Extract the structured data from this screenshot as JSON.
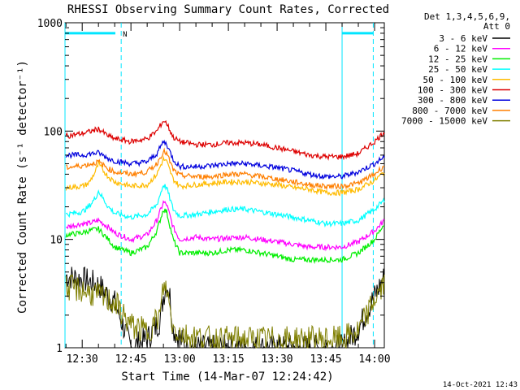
{
  "chart_data": {
    "type": "line",
    "title": "RHESSI Observing Summary Count Rates, Corrected",
    "xlabel": "Start Time (14-Mar-07 12:24:42)",
    "ylabel": "Corrected Count Rate (s⁻¹ detector⁻¹)",
    "yscale": "log",
    "ylim": [
      1,
      1000
    ],
    "xlim_minutes_after_1230": [
      -5.3,
      93
    ],
    "y_ticks": [
      "1",
      "10",
      "100",
      "1000"
    ],
    "x_ticks": [
      "12:30",
      "12:45",
      "13:00",
      "13:15",
      "13:30",
      "13:45",
      "14:00"
    ],
    "x_tick_minutes": [
      0,
      15,
      30,
      45,
      60,
      75,
      90
    ],
    "legend_header": [
      "Det 1,3,4,5,6,9,",
      "Att 0"
    ],
    "legend_placement": "right",
    "grid": false,
    "markers": {
      "boundaries_minutes": [
        -5.3,
        12.0,
        80.0,
        89.6
      ],
      "night_bars": [
        {
          "from": -5.3,
          "to": 10.2,
          "y": 800
        },
        {
          "from": 80.0,
          "to": 89.6,
          "y": 800
        }
      ],
      "night_label": "N",
      "night_label_at": 12.5,
      "colors": {
        "boundary": "#00e5ff",
        "night_bar": "#00e5ff"
      }
    },
    "series": [
      {
        "name": "3 - 6 keV",
        "color": "#000000",
        "points": [
          [
            -5,
            4.6
          ],
          [
            0,
            4.3
          ],
          [
            5,
            3.8
          ],
          [
            10,
            2.6
          ],
          [
            15,
            1
          ],
          [
            20,
            1.2
          ],
          [
            24,
            1.8
          ],
          [
            25,
            3
          ],
          [
            26,
            4
          ],
          [
            27,
            3
          ],
          [
            28,
            1.5
          ],
          [
            32,
            1
          ],
          [
            40,
            1
          ],
          [
            50,
            1
          ],
          [
            60,
            1
          ],
          [
            70,
            1
          ],
          [
            80,
            1
          ],
          [
            85,
            1.5
          ],
          [
            90,
            3
          ],
          [
            93,
            4.5
          ]
        ]
      },
      {
        "name": "6 - 12 keV",
        "color": "#ff00ff",
        "points": [
          [
            -5,
            13
          ],
          [
            0,
            14
          ],
          [
            2,
            14
          ],
          [
            5,
            15
          ],
          [
            8,
            13
          ],
          [
            10,
            11.5
          ],
          [
            15,
            10
          ],
          [
            20,
            11
          ],
          [
            23,
            15
          ],
          [
            25,
            22
          ],
          [
            26,
            21
          ],
          [
            28,
            13
          ],
          [
            30,
            10
          ],
          [
            35,
            10.5
          ],
          [
            40,
            10
          ],
          [
            45,
            10.3
          ],
          [
            50,
            10.5
          ],
          [
            55,
            10
          ],
          [
            60,
            9.5
          ],
          [
            65,
            9
          ],
          [
            70,
            8.5
          ],
          [
            75,
            8.5
          ],
          [
            80,
            8.5
          ],
          [
            85,
            9.5
          ],
          [
            90,
            12
          ],
          [
            93,
            15
          ]
        ]
      },
      {
        "name": "12 - 25 keV",
        "color": "#00ee00",
        "points": [
          [
            -5,
            11
          ],
          [
            0,
            11.5
          ],
          [
            2,
            12
          ],
          [
            5,
            12.5
          ],
          [
            8,
            10
          ],
          [
            10,
            8.5
          ],
          [
            15,
            7.5
          ],
          [
            20,
            8.5
          ],
          [
            23,
            12
          ],
          [
            25,
            19
          ],
          [
            26,
            18
          ],
          [
            28,
            10
          ],
          [
            30,
            7.5
          ],
          [
            35,
            7.5
          ],
          [
            40,
            7.5
          ],
          [
            45,
            8
          ],
          [
            50,
            8
          ],
          [
            55,
            7.5
          ],
          [
            60,
            7
          ],
          [
            65,
            6.5
          ],
          [
            70,
            6.5
          ],
          [
            75,
            6.5
          ],
          [
            80,
            6.5
          ],
          [
            85,
            7.5
          ],
          [
            90,
            10
          ],
          [
            93,
            14
          ]
        ]
      },
      {
        "name": "25 - 50 keV",
        "color": "#00ffff",
        "points": [
          [
            -5,
            17
          ],
          [
            0,
            18
          ],
          [
            2,
            20
          ],
          [
            4,
            24
          ],
          [
            5,
            28
          ],
          [
            6,
            25
          ],
          [
            8,
            20
          ],
          [
            10,
            17.5
          ],
          [
            15,
            16
          ],
          [
            20,
            17
          ],
          [
            23,
            21
          ],
          [
            25,
            32
          ],
          [
            26,
            30
          ],
          [
            28,
            19
          ],
          [
            30,
            16.5
          ],
          [
            35,
            17
          ],
          [
            40,
            18
          ],
          [
            45,
            19
          ],
          [
            50,
            19
          ],
          [
            55,
            18
          ],
          [
            60,
            17
          ],
          [
            65,
            16
          ],
          [
            70,
            15
          ],
          [
            75,
            14
          ],
          [
            80,
            14
          ],
          [
            85,
            15
          ],
          [
            90,
            19
          ],
          [
            93,
            23
          ]
        ]
      },
      {
        "name": "50 - 100 keV",
        "color": "#ffbb00",
        "points": [
          [
            -5,
            30
          ],
          [
            0,
            31
          ],
          [
            2,
            33
          ],
          [
            4,
            42
          ],
          [
            5,
            50
          ],
          [
            6,
            45
          ],
          [
            8,
            38
          ],
          [
            10,
            34
          ],
          [
            15,
            31
          ],
          [
            20,
            32
          ],
          [
            23,
            40
          ],
          [
            25,
            55
          ],
          [
            26,
            52
          ],
          [
            28,
            36
          ],
          [
            30,
            31
          ],
          [
            35,
            32
          ],
          [
            40,
            33
          ],
          [
            45,
            34
          ],
          [
            50,
            34
          ],
          [
            55,
            33
          ],
          [
            60,
            32
          ],
          [
            65,
            30
          ],
          [
            70,
            29
          ],
          [
            75,
            27
          ],
          [
            80,
            27
          ],
          [
            85,
            29
          ],
          [
            90,
            35
          ],
          [
            93,
            42
          ]
        ]
      },
      {
        "name": "100 - 300 keV",
        "color": "#dd0000",
        "points": [
          [
            -5,
            90
          ],
          [
            0,
            95
          ],
          [
            3,
            100
          ],
          [
            5,
            105
          ],
          [
            8,
            90
          ],
          [
            10,
            85
          ],
          [
            15,
            80
          ],
          [
            20,
            85
          ],
          [
            23,
            100
          ],
          [
            25,
            125
          ],
          [
            26,
            118
          ],
          [
            28,
            88
          ],
          [
            30,
            80
          ],
          [
            35,
            75
          ],
          [
            40,
            75
          ],
          [
            45,
            78
          ],
          [
            50,
            78
          ],
          [
            55,
            75
          ],
          [
            60,
            70
          ],
          [
            65,
            65
          ],
          [
            70,
            60
          ],
          [
            75,
            58
          ],
          [
            80,
            58
          ],
          [
            85,
            62
          ],
          [
            90,
            80
          ],
          [
            93,
            98
          ]
        ]
      },
      {
        "name": "300 - 800 keV",
        "color": "#0000dd",
        "points": [
          [
            -5,
            60
          ],
          [
            0,
            60
          ],
          [
            3,
            62
          ],
          [
            5,
            63
          ],
          [
            8,
            56
          ],
          [
            10,
            53
          ],
          [
            15,
            50
          ],
          [
            20,
            52
          ],
          [
            23,
            62
          ],
          [
            25,
            80
          ],
          [
            26,
            76
          ],
          [
            28,
            55
          ],
          [
            30,
            47
          ],
          [
            35,
            47
          ],
          [
            40,
            48
          ],
          [
            45,
            50
          ],
          [
            50,
            50
          ],
          [
            55,
            48
          ],
          [
            60,
            46
          ],
          [
            65,
            43
          ],
          [
            70,
            40
          ],
          [
            75,
            38
          ],
          [
            80,
            38
          ],
          [
            85,
            42
          ],
          [
            90,
            50
          ],
          [
            93,
            58
          ]
        ]
      },
      {
        "name": "800 - 7000 keV",
        "color": "#ff7f00",
        "points": [
          [
            -5,
            46
          ],
          [
            0,
            48
          ],
          [
            3,
            50
          ],
          [
            5,
            52
          ],
          [
            8,
            45
          ],
          [
            10,
            42
          ],
          [
            15,
            40
          ],
          [
            20,
            42
          ],
          [
            23,
            50
          ],
          [
            25,
            65
          ],
          [
            26,
            62
          ],
          [
            28,
            44
          ],
          [
            30,
            39
          ],
          [
            35,
            38
          ],
          [
            40,
            38
          ],
          [
            45,
            40
          ],
          [
            50,
            40
          ],
          [
            55,
            38
          ],
          [
            60,
            36
          ],
          [
            65,
            34
          ],
          [
            70,
            32
          ],
          [
            75,
            31
          ],
          [
            80,
            31
          ],
          [
            85,
            33
          ],
          [
            90,
            40
          ],
          [
            93,
            48
          ]
        ]
      },
      {
        "name": "7000 - 15000 keV",
        "color": "#7f7f00",
        "points": [
          [
            -5,
            3.6
          ],
          [
            0,
            3.4
          ],
          [
            5,
            3.0
          ],
          [
            10,
            2.6
          ],
          [
            15,
            1.6
          ],
          [
            20,
            1.4
          ],
          [
            24,
            2
          ],
          [
            25,
            3.6
          ],
          [
            26,
            3.5
          ],
          [
            28,
            1.5
          ],
          [
            32,
            1.3
          ],
          [
            40,
            1.2
          ],
          [
            50,
            1.2
          ],
          [
            60,
            1.2
          ],
          [
            70,
            1.2
          ],
          [
            80,
            1.2
          ],
          [
            85,
            1.4
          ],
          [
            90,
            2.8
          ],
          [
            93,
            3.8
          ]
        ]
      }
    ]
  },
  "footer": {
    "timestamp": "14-Oct-2021 12:43"
  }
}
